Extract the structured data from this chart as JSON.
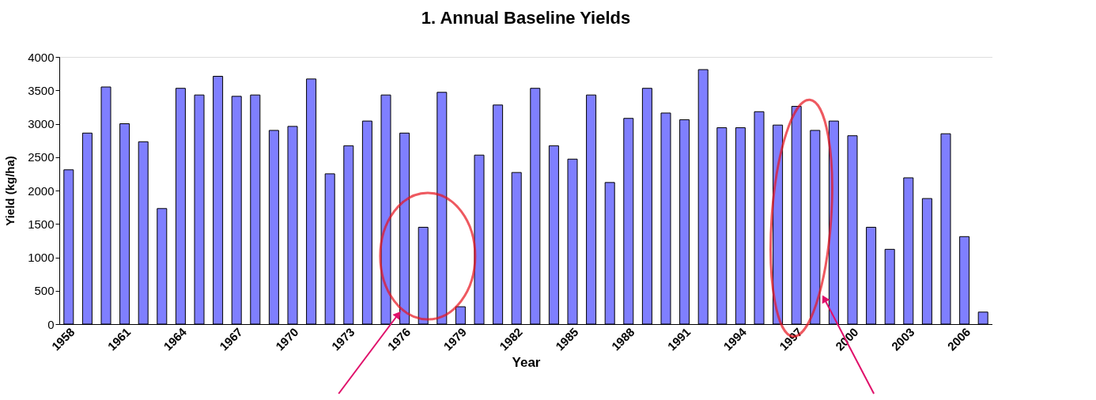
{
  "chart_data": {
    "type": "bar",
    "title": "1. Annual Baseline Yields",
    "xlabel": "Year",
    "ylabel": "Yield (kg/ha)",
    "categories": [
      "1958",
      null,
      null,
      "1961",
      null,
      null,
      "1964",
      null,
      null,
      "1967",
      null,
      null,
      "1970",
      null,
      null,
      "1973",
      null,
      null,
      "1976",
      null,
      null,
      "1979",
      null,
      null,
      "1982",
      null,
      null,
      "1985",
      null,
      null,
      "1988",
      null,
      null,
      "1991",
      null,
      null,
      "1994",
      null,
      null,
      "1997",
      null,
      null,
      "2000",
      null,
      null,
      "2003",
      null,
      null,
      "2006",
      null
    ],
    "values": [
      2310,
      2860,
      3550,
      3000,
      2730,
      1730,
      3530,
      3430,
      3710,
      3410,
      3430,
      2900,
      2960,
      3670,
      2250,
      2670,
      3040,
      3430,
      2860,
      1450,
      3470,
      260,
      2530,
      3280,
      2270,
      3530,
      2670,
      2470,
      3430,
      2120,
      3080,
      3530,
      3160,
      3060,
      3810,
      2940,
      2940,
      3180,
      2980,
      3260,
      2900,
      3040,
      2820,
      1450,
      1120,
      2190,
      1880,
      2850,
      1310,
      180
    ],
    "color": "#7f7fff",
    "ylim": [
      0,
      4000
    ],
    "yticks": [
      0,
      500,
      1000,
      1500,
      2000,
      2500,
      3000,
      3500,
      4000
    ],
    "grid": false
  }
}
